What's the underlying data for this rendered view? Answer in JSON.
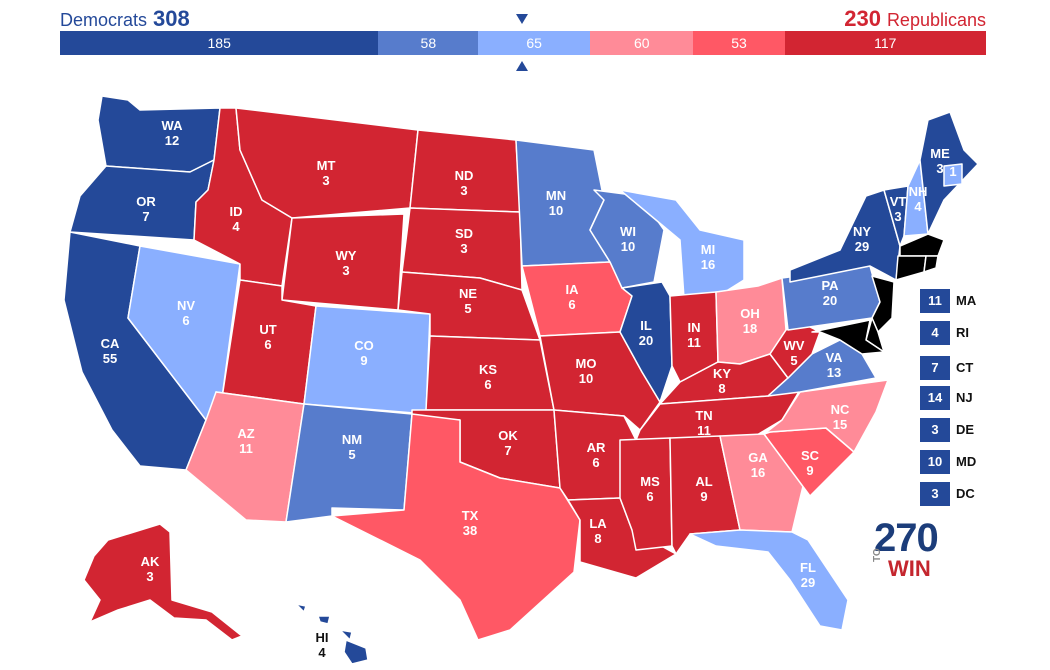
{
  "header": {
    "dem_label": "Democrats",
    "dem_total": "308",
    "rep_total": "230",
    "rep_label": "Republicans"
  },
  "colors": {
    "safe_d": "#244999",
    "likely_d": "#577ccc",
    "lean_d": "#8aafff",
    "lean_r": "#ff8b98",
    "likely_r": "#ff5865",
    "safe_r": "#d22532"
  },
  "bar": [
    {
      "value": "185",
      "votes": 185,
      "color": "#244999"
    },
    {
      "value": "58",
      "votes": 58,
      "color": "#577ccc"
    },
    {
      "value": "65",
      "votes": 65,
      "color": "#8aafff"
    },
    {
      "value": "60",
      "votes": 60,
      "color": "#ff8b98"
    },
    {
      "value": "53",
      "votes": 53,
      "color": "#ff5865"
    },
    {
      "value": "117",
      "votes": 117,
      "color": "#d22532"
    }
  ],
  "states": {
    "WA": {
      "abbr": "WA",
      "ev": "12",
      "rating": "safe_d"
    },
    "OR": {
      "abbr": "OR",
      "ev": "7",
      "rating": "safe_d"
    },
    "CA": {
      "abbr": "CA",
      "ev": "55",
      "rating": "safe_d"
    },
    "NV": {
      "abbr": "NV",
      "ev": "6",
      "rating": "lean_d"
    },
    "ID": {
      "abbr": "ID",
      "ev": "4",
      "rating": "safe_r"
    },
    "MT": {
      "abbr": "MT",
      "ev": "3",
      "rating": "safe_r"
    },
    "WY": {
      "abbr": "WY",
      "ev": "3",
      "rating": "safe_r"
    },
    "UT": {
      "abbr": "UT",
      "ev": "6",
      "rating": "safe_r"
    },
    "AZ": {
      "abbr": "AZ",
      "ev": "11",
      "rating": "lean_r"
    },
    "CO": {
      "abbr": "CO",
      "ev": "9",
      "rating": "lean_d"
    },
    "NM": {
      "abbr": "NM",
      "ev": "5",
      "rating": "likely_d"
    },
    "ND": {
      "abbr": "ND",
      "ev": "3",
      "rating": "safe_r"
    },
    "SD": {
      "abbr": "SD",
      "ev": "3",
      "rating": "safe_r"
    },
    "NE": {
      "abbr": "NE",
      "ev": "5",
      "rating": "safe_r"
    },
    "KS": {
      "abbr": "KS",
      "ev": "6",
      "rating": "safe_r"
    },
    "OK": {
      "abbr": "OK",
      "ev": "7",
      "rating": "safe_r"
    },
    "TX": {
      "abbr": "TX",
      "ev": "38",
      "rating": "likely_r"
    },
    "MN": {
      "abbr": "MN",
      "ev": "10",
      "rating": "likely_d"
    },
    "IA": {
      "abbr": "IA",
      "ev": "6",
      "rating": "likely_r"
    },
    "MO": {
      "abbr": "MO",
      "ev": "10",
      "rating": "safe_r"
    },
    "AR": {
      "abbr": "AR",
      "ev": "6",
      "rating": "safe_r"
    },
    "LA": {
      "abbr": "LA",
      "ev": "8",
      "rating": "safe_r"
    },
    "WI": {
      "abbr": "WI",
      "ev": "10",
      "rating": "likely_d"
    },
    "IL": {
      "abbr": "IL",
      "ev": "20",
      "rating": "safe_d"
    },
    "MI": {
      "abbr": "MI",
      "ev": "16",
      "rating": "lean_d"
    },
    "IN": {
      "abbr": "IN",
      "ev": "11",
      "rating": "safe_r"
    },
    "OH": {
      "abbr": "OH",
      "ev": "18",
      "rating": "lean_r"
    },
    "KY": {
      "abbr": "KY",
      "ev": "8",
      "rating": "safe_r"
    },
    "TN": {
      "abbr": "TN",
      "ev": "11",
      "rating": "safe_r"
    },
    "MS": {
      "abbr": "MS",
      "ev": "6",
      "rating": "safe_r"
    },
    "AL": {
      "abbr": "AL",
      "ev": "9",
      "rating": "safe_r"
    },
    "GA": {
      "abbr": "GA",
      "ev": "16",
      "rating": "lean_r"
    },
    "FL": {
      "abbr": "FL",
      "ev": "29",
      "rating": "lean_d"
    },
    "SC": {
      "abbr": "SC",
      "ev": "9",
      "rating": "likely_r"
    },
    "NC": {
      "abbr": "NC",
      "ev": "15",
      "rating": "lean_r"
    },
    "VA": {
      "abbr": "VA",
      "ev": "13",
      "rating": "likely_d"
    },
    "WV": {
      "abbr": "WV",
      "ev": "5",
      "rating": "safe_r"
    },
    "PA": {
      "abbr": "PA",
      "ev": "20",
      "rating": "likely_d"
    },
    "NY": {
      "abbr": "NY",
      "ev": "29",
      "rating": "safe_d"
    },
    "VT": {
      "abbr": "VT",
      "ev": "3",
      "rating": "safe_d"
    },
    "NH": {
      "abbr": "NH",
      "ev": "4",
      "rating": "lean_d"
    },
    "ME": {
      "abbr": "ME",
      "ev": "3",
      "rating": "safe_d"
    },
    "ME2": {
      "abbr": "",
      "ev": "1",
      "rating": "lean_d"
    },
    "AK": {
      "abbr": "AK",
      "ev": "3",
      "rating": "safe_r"
    },
    "HI": {
      "abbr": "HI",
      "ev": "4",
      "rating": "safe_d"
    }
  },
  "small_states": [
    {
      "abbr": "MA",
      "ev": "11"
    },
    {
      "abbr": "RI",
      "ev": "4"
    },
    {
      "abbr": "CT",
      "ev": "7"
    },
    {
      "abbr": "NJ",
      "ev": "14"
    },
    {
      "abbr": "DE",
      "ev": "3"
    },
    {
      "abbr": "MD",
      "ev": "10"
    },
    {
      "abbr": "DC",
      "ev": "3"
    }
  ],
  "logo": {
    "number": "270",
    "to": "TO",
    "win": "WIN"
  }
}
